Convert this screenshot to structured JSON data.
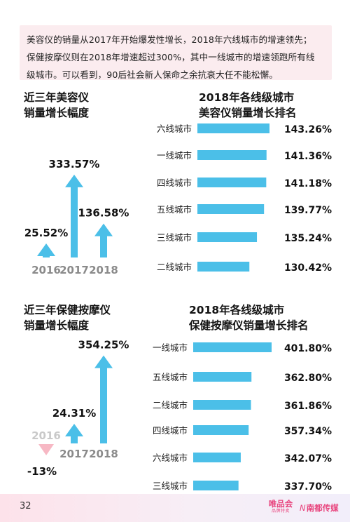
{
  "intro": {
    "line1": "美容仪的销量从2017年开始爆发性增长，2018年六线城市的增速领先；",
    "line2": "保健按摩仪则在2018年增速超过300%，其中一线城市的增速领跑所有线",
    "line3": "级城市。可以看到，90后社会新人保命之余抗衰大任不能松懈。"
  },
  "colors": {
    "arrow": "#4bbfe8",
    "arrow_negative": "#f7b8c4",
    "bar": "#4bbfe8",
    "intro_bg": "#fbecef",
    "year_text": "#8a8a8a",
    "brand": "#e8457e"
  },
  "chart_data": [
    {
      "type": "bar",
      "title_lines": [
        "近三年美容仪",
        "销量增长幅度"
      ],
      "categories": [
        "2016",
        "2017",
        "2018"
      ],
      "values": [
        25.52,
        333.57,
        136.58
      ],
      "labels": [
        "25.52%",
        "333.57%",
        "136.58%"
      ],
      "xlabel": "",
      "ylabel": ""
    },
    {
      "type": "bar",
      "orientation": "horizontal",
      "title_lines": [
        "2018年各线级城市",
        "美容仪销量增长排名"
      ],
      "categories": [
        "六线城市",
        "一线城市",
        "四线城市",
        "五线城市",
        "三线城市",
        "二线城市"
      ],
      "values": [
        143.26,
        141.36,
        141.18,
        139.77,
        135.24,
        130.42
      ],
      "labels": [
        "143.26%",
        "141.36%",
        "141.18%",
        "139.77%",
        "135.24%",
        "130.42%"
      ],
      "xlabel": "",
      "ylabel": ""
    },
    {
      "type": "bar",
      "title_lines": [
        "近三年保健按摩仪",
        "销量增长幅度"
      ],
      "categories": [
        "2016",
        "2017",
        "2018"
      ],
      "values": [
        -13,
        24.31,
        354.25
      ],
      "labels": [
        "-13%",
        "24.31%",
        "354.25%"
      ],
      "xlabel": "",
      "ylabel": ""
    },
    {
      "type": "bar",
      "orientation": "horizontal",
      "title_lines": [
        "2018年各线级城市",
        "保健按摩仪销量增长排名"
      ],
      "categories": [
        "一线城市",
        "五线城市",
        "二线城市",
        "四线城市",
        "六线城市",
        "三线城市"
      ],
      "values": [
        401.8,
        362.8,
        361.86,
        357.34,
        342.07,
        337.7
      ],
      "labels": [
        "401.80%",
        "362.80%",
        "361.86%",
        "357.34%",
        "342.07%",
        "337.70%"
      ],
      "xlabel": "",
      "ylabel": ""
    }
  ],
  "footer": {
    "page_number": "32",
    "brand1": "唯品会",
    "brand1_sub": "品牌特卖",
    "brand2_logo": "N",
    "brand2_name": "南都传媒"
  }
}
